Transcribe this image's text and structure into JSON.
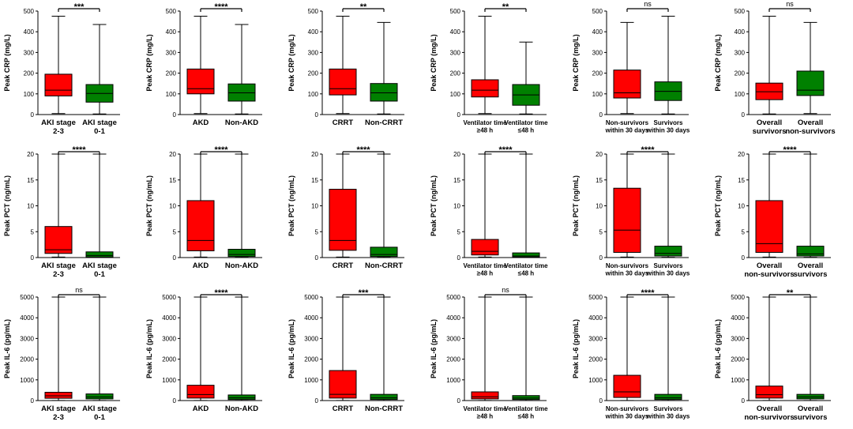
{
  "colors": {
    "red": "#ff0000",
    "green": "#008000",
    "black": "#000000"
  },
  "chart_data": [
    {
      "type": "box",
      "ylabel": "Peak CRP (mg/L)",
      "ylim": [
        0,
        500
      ],
      "yticks": [
        0,
        100,
        200,
        300,
        400,
        500
      ],
      "significance": "***",
      "categories": [
        {
          "lines": [
            "AKI stage",
            "2-3"
          ],
          "stats": [
            5,
            90,
            118,
            195,
            475
          ],
          "color": "#ff0000"
        },
        {
          "lines": [
            "AKI stage",
            "0-1"
          ],
          "stats": [
            3,
            60,
            102,
            145,
            435
          ],
          "color": "#008000"
        }
      ]
    },
    {
      "type": "box",
      "ylabel": "Peak CRP (mg/L)",
      "ylim": [
        0,
        500
      ],
      "yticks": [
        0,
        100,
        200,
        300,
        400,
        500
      ],
      "significance": "****",
      "categories": [
        {
          "lines": [
            "AKD"
          ],
          "stats": [
            5,
            100,
            125,
            220,
            475
          ],
          "color": "#ff0000"
        },
        {
          "lines": [
            "Non-AKD"
          ],
          "stats": [
            3,
            65,
            105,
            148,
            435
          ],
          "color": "#008000"
        }
      ]
    },
    {
      "type": "box",
      "ylabel": "Peak CRP (mg/L)",
      "ylim": [
        0,
        500
      ],
      "yticks": [
        0,
        100,
        200,
        300,
        400,
        500
      ],
      "significance": "**",
      "categories": [
        {
          "lines": [
            "CRRT"
          ],
          "stats": [
            5,
            95,
            125,
            220,
            475
          ],
          "color": "#ff0000"
        },
        {
          "lines": [
            "Non-CRRT"
          ],
          "stats": [
            3,
            65,
            105,
            150,
            445
          ],
          "color": "#008000"
        }
      ]
    },
    {
      "type": "box",
      "ylabel": "Peak CRP (mg/L)",
      "ylim": [
        0,
        500
      ],
      "yticks": [
        0,
        100,
        200,
        300,
        400,
        500
      ],
      "significance": "**",
      "small_labels": true,
      "categories": [
        {
          "lines": [
            "Ventilator time",
            "≥48 h"
          ],
          "stats": [
            5,
            85,
            118,
            168,
            475
          ],
          "color": "#ff0000"
        },
        {
          "lines": [
            "Ventilator time",
            "≤48 h"
          ],
          "stats": [
            3,
            45,
            95,
            145,
            350
          ],
          "color": "#008000"
        }
      ]
    },
    {
      "type": "box",
      "ylabel": "Peak CRP (mg/L)",
      "ylim": [
        0,
        500
      ],
      "yticks": [
        0,
        100,
        200,
        300,
        400,
        500
      ],
      "significance": "ns",
      "small_labels": true,
      "categories": [
        {
          "lines": [
            "Non-survivors",
            "within 30 days"
          ],
          "stats": [
            5,
            80,
            105,
            215,
            445
          ],
          "color": "#ff0000"
        },
        {
          "lines": [
            "Survivors",
            "within 30 days"
          ],
          "stats": [
            3,
            68,
            112,
            158,
            475
          ],
          "color": "#008000"
        }
      ]
    },
    {
      "type": "box",
      "ylabel": "Peak CRP (mg/L)",
      "ylim": [
        0,
        500
      ],
      "yticks": [
        0,
        100,
        200,
        300,
        400,
        500
      ],
      "significance": "ns",
      "categories": [
        {
          "lines": [
            "Overall",
            "survivors"
          ],
          "stats": [
            3,
            72,
            110,
            152,
            475
          ],
          "color": "#ff0000"
        },
        {
          "lines": [
            "Overall",
            "non-survivors"
          ],
          "stats": [
            5,
            92,
            118,
            210,
            445
          ],
          "color": "#008000"
        }
      ]
    },
    {
      "type": "box",
      "ylabel": "Peak PCT (ng/mL)",
      "ylim": [
        0,
        20
      ],
      "yticks": [
        0,
        5,
        10,
        15,
        20
      ],
      "significance": "****",
      "categories": [
        {
          "lines": [
            "AKI stage",
            "2-3"
          ],
          "stats": [
            0.1,
            0.8,
            1.5,
            6.0,
            20
          ],
          "color": "#ff0000"
        },
        {
          "lines": [
            "AKI stage",
            "0-1"
          ],
          "stats": [
            0.05,
            0.1,
            0.4,
            1.1,
            20
          ],
          "color": "#008000"
        }
      ]
    },
    {
      "type": "box",
      "ylabel": "Peak PCT (ng/mL)",
      "ylim": [
        0,
        20
      ],
      "yticks": [
        0,
        5,
        10,
        15,
        20
      ],
      "significance": "****",
      "categories": [
        {
          "lines": [
            "AKD"
          ],
          "stats": [
            0.1,
            1.3,
            3.3,
            11.0,
            20
          ],
          "color": "#ff0000"
        },
        {
          "lines": [
            "Non-AKD"
          ],
          "stats": [
            0.05,
            0.2,
            0.6,
            1.6,
            20
          ],
          "color": "#008000"
        }
      ]
    },
    {
      "type": "box",
      "ylabel": "Peak PCT (ng/mL)",
      "ylim": [
        0,
        20
      ],
      "yticks": [
        0,
        5,
        10,
        15,
        20
      ],
      "significance": "****",
      "categories": [
        {
          "lines": [
            "CRRT"
          ],
          "stats": [
            0.1,
            1.4,
            3.3,
            13.2,
            20
          ],
          "color": "#ff0000"
        },
        {
          "lines": [
            "Non-CRRT"
          ],
          "stats": [
            0.05,
            0.2,
            0.6,
            2.0,
            20
          ],
          "color": "#008000"
        }
      ]
    },
    {
      "type": "box",
      "ylabel": "Peak PCT (ng/mL)",
      "ylim": [
        0,
        20
      ],
      "yticks": [
        0,
        5,
        10,
        15,
        20
      ],
      "significance": "****",
      "small_labels": true,
      "categories": [
        {
          "lines": [
            "Ventilator time",
            "≥48 h"
          ],
          "stats": [
            0.1,
            0.5,
            1.2,
            3.5,
            20
          ],
          "color": "#ff0000"
        },
        {
          "lines": [
            "Ventilator time",
            "≤48 h"
          ],
          "stats": [
            0.05,
            0.1,
            0.3,
            0.9,
            20
          ],
          "color": "#008000"
        }
      ]
    },
    {
      "type": "box",
      "ylabel": "Peak PCT (ng/mL)",
      "ylim": [
        0,
        20
      ],
      "yticks": [
        0,
        5,
        10,
        15,
        20
      ],
      "significance": "****",
      "small_labels": true,
      "categories": [
        {
          "lines": [
            "Non-survivors",
            "within 30 days"
          ],
          "stats": [
            0.1,
            1.0,
            5.3,
            13.4,
            20
          ],
          "color": "#ff0000"
        },
        {
          "lines": [
            "Survivors",
            "within 30 days"
          ],
          "stats": [
            0.05,
            0.3,
            0.8,
            2.2,
            20
          ],
          "color": "#008000"
        }
      ]
    },
    {
      "type": "box",
      "ylabel": "Peak PCT (ng/mL)",
      "ylim": [
        0,
        20
      ],
      "yticks": [
        0,
        5,
        10,
        15,
        20
      ],
      "significance": "****",
      "categories": [
        {
          "lines": [
            "Overall",
            "non-survivors"
          ],
          "stats": [
            0.1,
            1.0,
            2.7,
            11.0,
            20
          ],
          "color": "#ff0000"
        },
        {
          "lines": [
            "Overall",
            "survivors"
          ],
          "stats": [
            0.05,
            0.3,
            0.7,
            2.2,
            20
          ],
          "color": "#008000"
        }
      ]
    },
    {
      "type": "box",
      "ylabel": "Peak IL-6 (pg/mL)",
      "ylim": [
        0,
        5000
      ],
      "yticks": [
        0,
        1000,
        2000,
        3000,
        4000,
        5000
      ],
      "significance": "ns",
      "categories": [
        {
          "lines": [
            "AKI stage",
            "2-3"
          ],
          "stats": [
            5,
            110,
            230,
            400,
            5000
          ],
          "color": "#ff0000"
        },
        {
          "lines": [
            "AKI stage",
            "0-1"
          ],
          "stats": [
            5,
            80,
            170,
            320,
            5000
          ],
          "color": "#008000"
        }
      ]
    },
    {
      "type": "box",
      "ylabel": "Peak IL-6 (pg/mL)",
      "ylim": [
        0,
        5000
      ],
      "yticks": [
        0,
        1000,
        2000,
        3000,
        4000,
        5000
      ],
      "significance": "****",
      "categories": [
        {
          "lines": [
            "AKD"
          ],
          "stats": [
            5,
            120,
            290,
            740,
            5000
          ],
          "color": "#ff0000"
        },
        {
          "lines": [
            "Non-AKD"
          ],
          "stats": [
            5,
            50,
            130,
            270,
            5000
          ],
          "color": "#008000"
        }
      ]
    },
    {
      "type": "box",
      "ylabel": "Peak IL-6 (pg/mL)",
      "ylim": [
        0,
        5000
      ],
      "yticks": [
        0,
        1000,
        2000,
        3000,
        4000,
        5000
      ],
      "significance": "***",
      "categories": [
        {
          "lines": [
            "CRRT"
          ],
          "stats": [
            5,
            120,
            300,
            1450,
            5000
          ],
          "color": "#ff0000"
        },
        {
          "lines": [
            "Non-CRRT"
          ],
          "stats": [
            5,
            50,
            130,
            300,
            5000
          ],
          "color": "#008000"
        }
      ]
    },
    {
      "type": "box",
      "ylabel": "Peak IL-6 (pg/mL)",
      "ylim": [
        0,
        5000
      ],
      "yticks": [
        0,
        1000,
        2000,
        3000,
        4000,
        5000
      ],
      "significance": "ns",
      "small_labels": true,
      "categories": [
        {
          "lines": [
            "Ventilator time",
            "≥48 h"
          ],
          "stats": [
            5,
            80,
            180,
            420,
            5000
          ],
          "color": "#ff0000"
        },
        {
          "lines": [
            "Ventilator time",
            "≤48 h"
          ],
          "stats": [
            5,
            50,
            120,
            240,
            5000
          ],
          "color": "#008000"
        }
      ]
    },
    {
      "type": "box",
      "ylabel": "Peak IL-6 (pg/mL)",
      "ylim": [
        0,
        5000
      ],
      "yticks": [
        0,
        1000,
        2000,
        3000,
        4000,
        5000
      ],
      "significance": "****",
      "small_labels": true,
      "categories": [
        {
          "lines": [
            "Non-survivors",
            "within 30 days"
          ],
          "stats": [
            5,
            150,
            420,
            1220,
            5000
          ],
          "color": "#ff0000"
        },
        {
          "lines": [
            "Survivors",
            "within 30 days"
          ],
          "stats": [
            5,
            50,
            130,
            300,
            5000
          ],
          "color": "#008000"
        }
      ]
    },
    {
      "type": "box",
      "ylabel": "Peak IL-6 (pg/mL)",
      "ylim": [
        0,
        5000
      ],
      "yticks": [
        0,
        1000,
        2000,
        3000,
        4000,
        5000
      ],
      "significance": "**",
      "categories": [
        {
          "lines": [
            "Overall",
            "non-survivors"
          ],
          "stats": [
            5,
            120,
            280,
            700,
            5000
          ],
          "color": "#ff0000"
        },
        {
          "lines": [
            "Overall",
            "survivors"
          ],
          "stats": [
            5,
            80,
            170,
            300,
            5000
          ],
          "color": "#008000"
        }
      ]
    }
  ]
}
